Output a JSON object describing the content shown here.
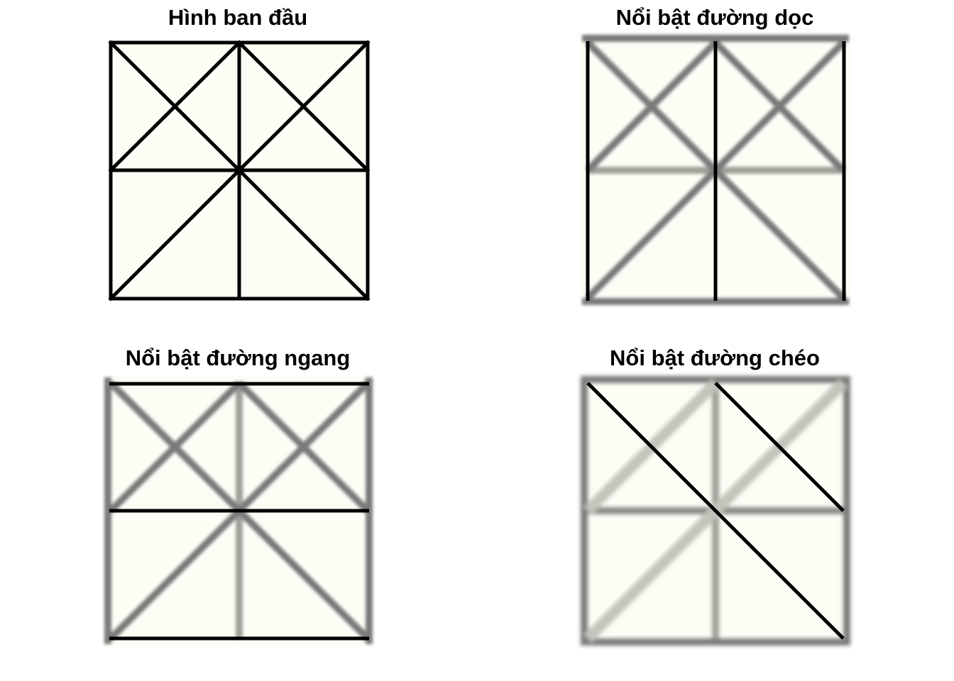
{
  "panels": [
    {
      "id": "original",
      "title": "Hình ban đầu",
      "highlight": "none"
    },
    {
      "id": "vertical",
      "title": "Nổi bật đường dọc",
      "highlight": "vertical"
    },
    {
      "id": "horizontal",
      "title": "Nổi bật đường ngang",
      "highlight": "horizontal"
    },
    {
      "id": "diagonal",
      "title": "Nổi bật đường chéo",
      "highlight": "diagonal"
    }
  ],
  "colors": {
    "fill": "#fdfdf6",
    "line": "#000000",
    "blurred_line": "#7a7a7a",
    "faint_line": "#c4c4bc",
    "border_blur": "#808080"
  }
}
